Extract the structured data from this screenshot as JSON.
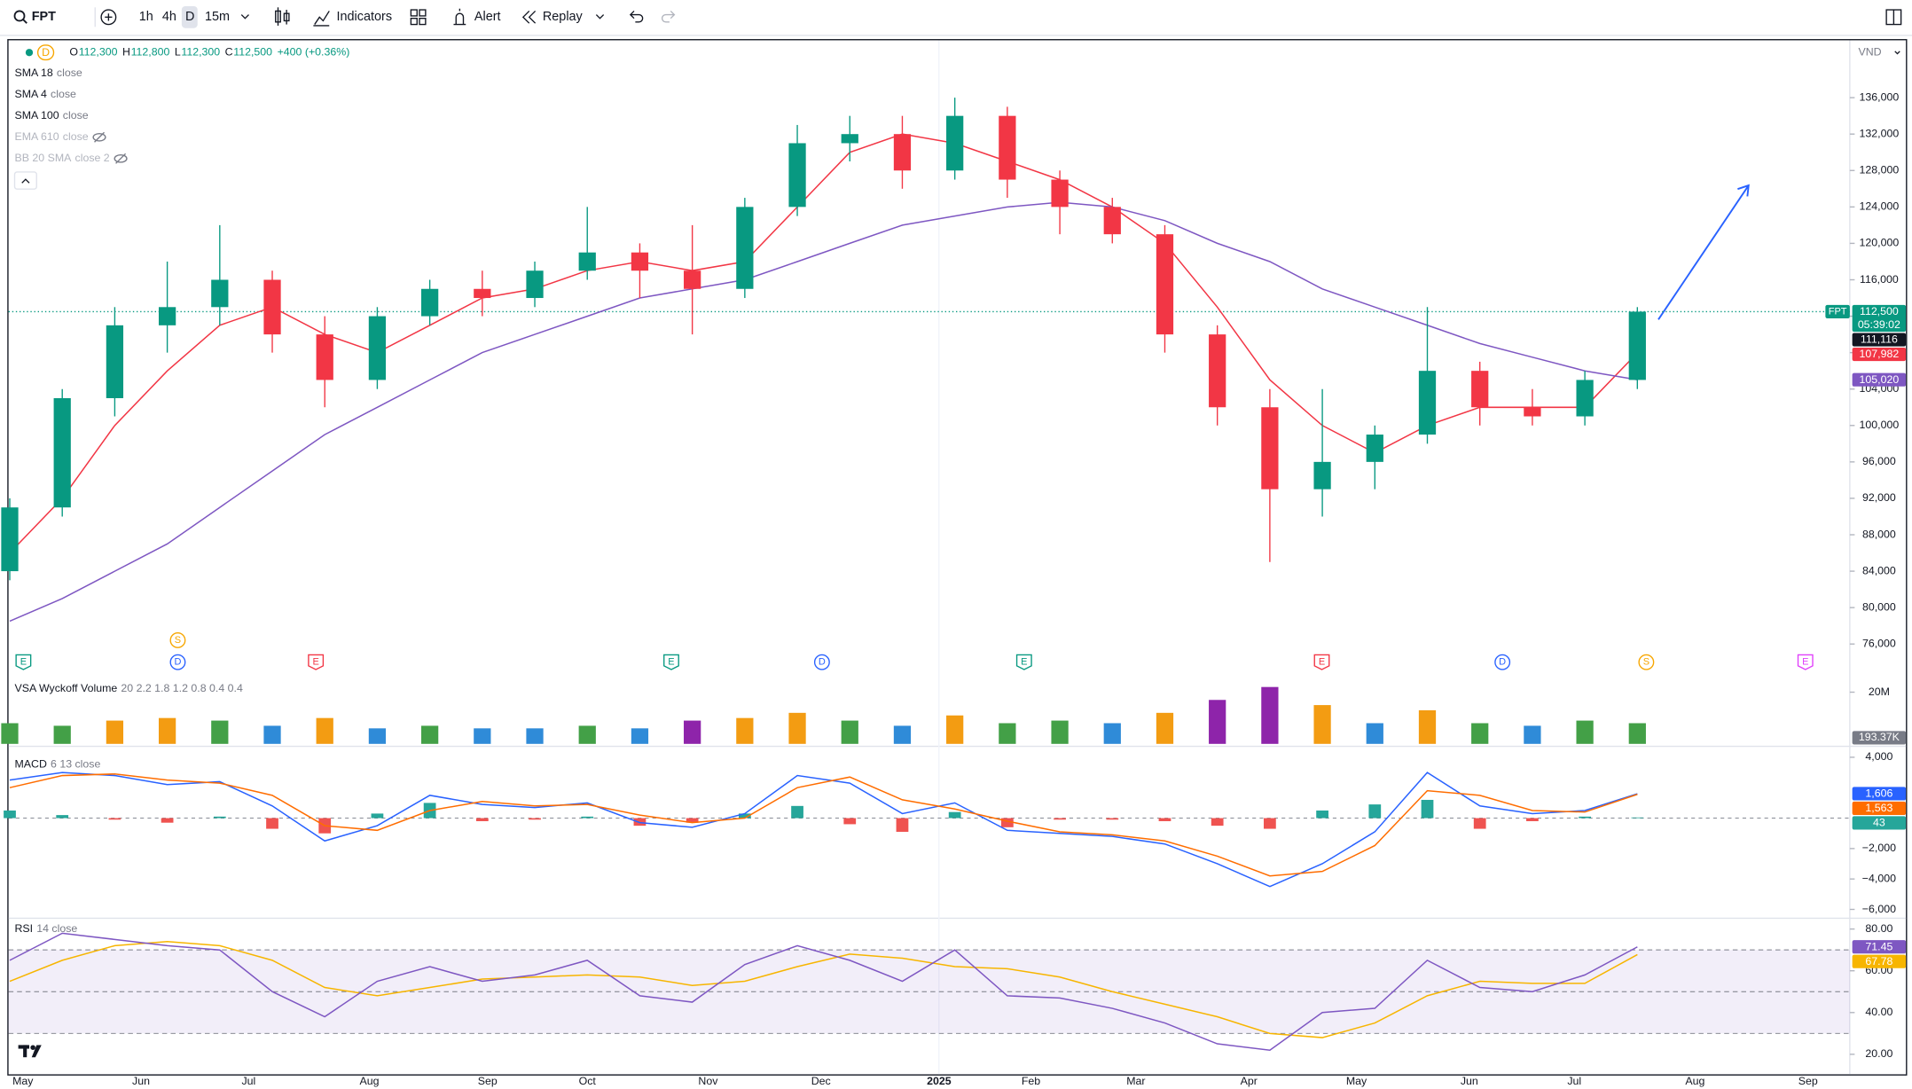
{
  "toolbar": {
    "symbol": "FPT",
    "intervals": [
      "1h",
      "4h",
      "D",
      "15m"
    ],
    "indicators": "Indicators",
    "alert": "Alert",
    "replay": "Replay"
  },
  "currency": "VND",
  "chart_data": [
    {
      "type": "candlestick",
      "legend": {
        "interval": "D",
        "items": [
          {
            "k": "O",
            "v": "112,300"
          },
          {
            "k": "H",
            "v": "112,800"
          },
          {
            "k": "L",
            "v": "112,300"
          },
          {
            "k": "C",
            "v": "112,500"
          }
        ],
        "change": "+400 (+0.36%)"
      },
      "indicators": [
        {
          "name": "SMA 18",
          "args": "close",
          "hidden": false
        },
        {
          "name": "SMA 4",
          "args": "close",
          "hidden": false
        },
        {
          "name": "SMA 100",
          "args": "close",
          "hidden": false
        },
        {
          "name": "EMA 610",
          "args": "close",
          "hidden": true
        },
        {
          "name": "BB 20 SMA",
          "args": "close 2",
          "hidden": true
        }
      ],
      "xlim": [
        0,
        35
      ],
      "ylim": [
        72400,
        142300
      ],
      "yticks": [
        {
          "value": 76000,
          "label": "76,000"
        },
        {
          "value": 80000,
          "label": "80,000"
        },
        {
          "value": 84000,
          "label": "84,000"
        },
        {
          "value": 88000,
          "label": "88,000"
        },
        {
          "value": 92000,
          "label": "92,000"
        },
        {
          "value": 96000,
          "label": "96,000"
        },
        {
          "value": 100000,
          "label": "100,000"
        },
        {
          "value": 104000,
          "label": "104,000"
        },
        {
          "value": 108000,
          "label": "108,000"
        },
        {
          "value": 112000,
          "label": "112,000"
        },
        {
          "value": 116000,
          "label": "116,000"
        },
        {
          "value": 120000,
          "label": "120,000"
        },
        {
          "value": 124000,
          "label": "124,000"
        },
        {
          "value": 128000,
          "label": "128,000"
        },
        {
          "value": 132000,
          "label": "132,000"
        },
        {
          "value": 136000,
          "label": "136,000"
        }
      ],
      "up_color": "#089981",
      "down_color": "#f23645",
      "open": [
        84000,
        91000,
        103000,
        111000,
        113000,
        116000,
        110000,
        105000,
        112000,
        115000,
        114000,
        117000,
        119000,
        117000,
        115000,
        124000,
        131000,
        132000,
        128000,
        134000,
        127000,
        124000,
        121000,
        110000,
        102000,
        93000,
        96000,
        99000,
        106000,
        102000,
        101000,
        105000
      ],
      "high": [
        92000,
        104000,
        113000,
        118000,
        122000,
        117000,
        112000,
        113000,
        116000,
        117000,
        118000,
        124000,
        120000,
        122000,
        125000,
        133000,
        134000,
        134000,
        136000,
        135000,
        128000,
        125000,
        122000,
        111000,
        104000,
        104000,
        100000,
        113000,
        107000,
        104000,
        106000,
        113000
      ],
      "low": [
        83000,
        90000,
        101000,
        108000,
        111000,
        108000,
        102000,
        104000,
        111000,
        112000,
        113000,
        116000,
        114000,
        110000,
        114000,
        123000,
        129000,
        126000,
        127000,
        125000,
        121000,
        120000,
        108000,
        100000,
        85000,
        90000,
        93000,
        98000,
        100000,
        100000,
        100000,
        104000
      ],
      "close": [
        91000,
        103000,
        111000,
        113000,
        116000,
        110000,
        105000,
        112000,
        115000,
        114000,
        117000,
        119000,
        117000,
        115000,
        124000,
        131000,
        132000,
        128000,
        134000,
        127000,
        124000,
        121000,
        110000,
        102000,
        93000,
        96000,
        99000,
        106000,
        102000,
        101000,
        105000,
        112500
      ],
      "lines": [
        {
          "color": "#f23645",
          "values": [
            86000,
            92000,
            100000,
            106000,
            111000,
            113000,
            110000,
            108000,
            111000,
            114000,
            115000,
            117000,
            118000,
            117000,
            118000,
            124000,
            130000,
            132000,
            131000,
            129000,
            127000,
            124000,
            120000,
            113000,
            105000,
            100000,
            97000,
            100000,
            102000,
            102000,
            102000,
            107982
          ]
        },
        {
          "color": "#7e57c2",
          "values": [
            78500,
            81000,
            84000,
            87000,
            91000,
            95000,
            99000,
            102000,
            105000,
            108000,
            110000,
            112000,
            114000,
            115000,
            116000,
            118000,
            120000,
            122000,
            123000,
            124000,
            124500,
            124000,
            122500,
            120000,
            118000,
            115000,
            113000,
            111000,
            109000,
            107500,
            106000,
            105020
          ]
        }
      ],
      "symbol_tag": "FPT",
      "badges": [
        {
          "value": 112500,
          "label": "112,500",
          "sub": "05:39:02",
          "color": "#089981"
        },
        {
          "value": 111116,
          "label": "111,116",
          "color": "#131722"
        },
        {
          "value": 107982,
          "label": "107,982",
          "color": "#f23645"
        },
        {
          "value": 105020,
          "label": "105,020",
          "color": "#7e57c2"
        }
      ],
      "events": [
        {
          "label": "E",
          "x": 0.26,
          "color": "#089981"
        },
        {
          "label": "D",
          "x": 3.2,
          "color": "#2962ff"
        },
        {
          "label": "S",
          "x": 3.2,
          "color": "#f7a600"
        },
        {
          "label": "E",
          "x": 5.83,
          "color": "#f23645"
        },
        {
          "label": "E",
          "x": 12.6,
          "color": "#089981"
        },
        {
          "label": "D",
          "x": 15.47,
          "color": "#2962ff"
        },
        {
          "label": "E",
          "x": 19.32,
          "color": "#089981"
        },
        {
          "label": "E",
          "x": 24.99,
          "color": "#f23645"
        },
        {
          "label": "D",
          "x": 28.43,
          "color": "#2962ff"
        },
        {
          "label": "S",
          "x": 31.17,
          "color": "#f7a600"
        },
        {
          "label": "E",
          "x": 34.2,
          "color": "#e040fb"
        }
      ]
    },
    {
      "type": "bar",
      "title": "VSA Wyckoff Volume",
      "params": "20 2.2 1.8 1.2 0.8 0.4 0.4",
      "values": [
        8000000,
        7000000,
        9000000,
        10000000,
        9000000,
        7000000,
        10000000,
        6000000,
        7000000,
        6000000,
        6000000,
        7000000,
        6000000,
        9000000,
        10000000,
        12000000,
        9000000,
        7000000,
        11000000,
        8000000,
        9000000,
        8000000,
        12000000,
        17000000,
        22000000,
        15000000,
        8000000,
        13000000,
        8000000,
        7000000,
        9000000,
        8000000
      ],
      "colors": [
        "#43a047",
        "#43a047",
        "#f39c12",
        "#f39c12",
        "#43a047",
        "#2f8bd8",
        "#f39c12",
        "#2f8bd8",
        "#43a047",
        "#2f8bd8",
        "#2f8bd8",
        "#43a047",
        "#2f8bd8",
        "#8e24aa",
        "#f39c12",
        "#f39c12",
        "#43a047",
        "#2f8bd8",
        "#f39c12",
        "#43a047",
        "#43a047",
        "#2f8bd8",
        "#f39c12",
        "#8e24aa",
        "#8e24aa",
        "#f39c12",
        "#2f8bd8",
        "#f39c12",
        "#43a047",
        "#2f8bd8",
        "#43a047",
        "#43a047"
      ],
      "ylim": [
        0,
        25000000
      ],
      "yticks": [
        {
          "value": 20000000,
          "label": "20M"
        }
      ],
      "badge": {
        "value": 193370,
        "label": "193.37K",
        "color": "#787b86"
      }
    },
    {
      "type": "macd",
      "title": "MACD",
      "params": "6 13 close",
      "macd": [
        2500,
        3000,
        2800,
        2200,
        2400,
        800,
        -1500,
        -500,
        1500,
        900,
        700,
        1000,
        -300,
        -600,
        300,
        2800,
        2300,
        300,
        1000,
        -800,
        -1000,
        -1200,
        -1700,
        -3000,
        -4500,
        -3000,
        -900,
        3000,
        800,
        300,
        500,
        1606
      ],
      "signal": [
        2000,
        2800,
        2900,
        2500,
        2300,
        1500,
        -500,
        -800,
        500,
        1100,
        800,
        900,
        200,
        -300,
        0,
        2000,
        2700,
        1200,
        600,
        -200,
        -900,
        -1100,
        -1500,
        -2500,
        -3800,
        -3500,
        -1800,
        1800,
        1500,
        500,
        400,
        1563
      ],
      "histogram": [
        500,
        200,
        -100,
        -300,
        100,
        -700,
        -1000,
        300,
        1000,
        -200,
        -100,
        100,
        -500,
        -300,
        300,
        800,
        -400,
        -900,
        400,
        -600,
        -100,
        -100,
        -200,
        -500,
        -700,
        500,
        900,
        1200,
        -700,
        -200,
        100,
        43
      ],
      "colors": {
        "macd": "#2962ff",
        "signal": "#ff6d00",
        "up": "#26a69a",
        "down": "#ef5350"
      },
      "ylim": [
        -6500,
        4400
      ],
      "yticks": [
        {
          "value": 4000,
          "label": "4,000"
        },
        {
          "value": -2000,
          "label": "−2,000"
        },
        {
          "value": -4000,
          "label": "−4,000"
        },
        {
          "value": -6000,
          "label": "−6,000"
        }
      ],
      "badges": [
        {
          "value": 1606,
          "label": "1,606",
          "color": "#2962ff"
        },
        {
          "value": 1563,
          "label": "1,563",
          "color": "#ff6d00"
        },
        {
          "value": 43,
          "label": "43",
          "color": "#26a69a"
        }
      ]
    },
    {
      "type": "rsi",
      "title": "RSI",
      "params": "14 close",
      "values": [
        65,
        78,
        75,
        72,
        70,
        50,
        38,
        55,
        62,
        55,
        58,
        65,
        48,
        45,
        63,
        72,
        65,
        55,
        70,
        48,
        47,
        42,
        35,
        25,
        22,
        40,
        42,
        65,
        52,
        50,
        58,
        71.45
      ],
      "ma": [
        55,
        65,
        72,
        74,
        72,
        65,
        52,
        48,
        52,
        56,
        57,
        58,
        57,
        53,
        55,
        62,
        68,
        66,
        62,
        61,
        57,
        50,
        44,
        38,
        30,
        28,
        35,
        48,
        55,
        54,
        54,
        67.78
      ],
      "colors": {
        "rsi": "#7e57c2",
        "ma": "#f7b500"
      },
      "bands": [
        70,
        50,
        30
      ],
      "ylim": [
        11,
        84
      ],
      "yticks": [
        {
          "value": 80,
          "label": "80.00"
        },
        {
          "value": 60,
          "label": "60.00"
        },
        {
          "value": 40,
          "label": "40.00"
        },
        {
          "value": 20,
          "label": "20.00"
        }
      ],
      "badges": [
        {
          "value": 71.45,
          "label": "71.45",
          "color": "#7e57c2"
        },
        {
          "value": 67.78,
          "label": "67.78",
          "color": "#f7b500"
        }
      ],
      "xticks": [
        {
          "value": 0.25,
          "label": "May"
        },
        {
          "value": 2.5,
          "label": "Jun"
        },
        {
          "value": 4.55,
          "label": "Jul"
        },
        {
          "value": 6.85,
          "label": "Aug"
        },
        {
          "value": 9.1,
          "label": "Sep"
        },
        {
          "value": 11,
          "label": "Oct"
        },
        {
          "value": 13.3,
          "label": "Nov"
        },
        {
          "value": 15.45,
          "label": "Dec"
        },
        {
          "value": 17.7,
          "label": "2025"
        },
        {
          "value": 19.45,
          "label": "Feb"
        },
        {
          "value": 21.45,
          "label": "Mar"
        },
        {
          "value": 23.6,
          "label": "Apr"
        },
        {
          "value": 25.65,
          "label": "May"
        },
        {
          "value": 27.8,
          "label": "Jun"
        },
        {
          "value": 29.8,
          "label": "Jul"
        },
        {
          "value": 32.1,
          "label": "Aug"
        },
        {
          "value": 34.25,
          "label": "Sep"
        }
      ]
    }
  ]
}
